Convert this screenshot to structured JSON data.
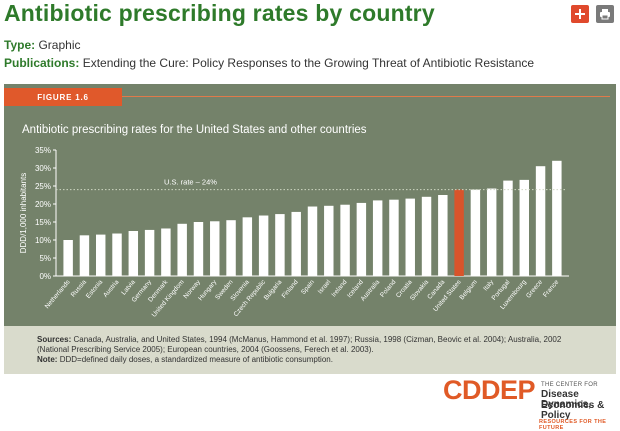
{
  "header": {
    "title": "Antibiotic prescribing rates by country",
    "add_icon": "plus-icon",
    "print_icon": "printer-icon"
  },
  "meta": {
    "type_label": "Type:",
    "type_value": "Graphic",
    "pub_label": "Publications:",
    "pub_value": "Extending the Cure: Policy Responses to the Growing Threat of Antibiotic Resistance"
  },
  "figure": {
    "tag": "FIGURE 1.6"
  },
  "chart_data": {
    "type": "bar",
    "title": "Antibiotic prescribing rates for the United States and other countries",
    "ylabel": "DDD/1,000 inhabitants",
    "xlabel": "",
    "ylim": [
      0,
      35
    ],
    "yticks": [
      "0%",
      "5%",
      "10%",
      "15%",
      "20%",
      "25%",
      "30%",
      "35%"
    ],
    "grid": false,
    "categories": [
      "Netherlands",
      "Russia",
      "Estonia",
      "Austria",
      "Latvia",
      "Germany",
      "Denmark",
      "United Kingdom",
      "Norway",
      "Hungary",
      "Sweden",
      "Slovenia",
      "Czech Republic",
      "Bulgaria",
      "Finland",
      "Spain",
      "Israel",
      "Ireland",
      "Iceland",
      "Australia",
      "Poland",
      "Croatia",
      "Slovakia",
      "Canada",
      "United States",
      "Belgium",
      "Italy",
      "Portugal",
      "Luxembourg",
      "Greece",
      "France"
    ],
    "values": [
      10,
      11.3,
      11.5,
      11.8,
      12.5,
      12.8,
      13.2,
      14.5,
      15,
      15.2,
      15.5,
      16.3,
      16.8,
      17.2,
      17.8,
      19.3,
      19.5,
      19.8,
      20.3,
      21,
      21.2,
      21.5,
      22,
      22.5,
      24,
      24,
      24.3,
      26.5,
      26.7,
      30.5,
      32
    ],
    "highlight": "United States",
    "reference_line": {
      "value": 24,
      "label": "U.S. rate – 24%"
    },
    "colors": {
      "bar": "#ffffff",
      "highlight": "#d9542b",
      "background": "#74826a",
      "reference": "#d0d8c4"
    }
  },
  "notes": {
    "sources_label": "Sources:",
    "sources_line1": "Canada, Australia, and United States, 1994 (McManus, Hammond et al. 1997); Russia, 1998 (Cizman, Beovic et al. 2004); Australia, 2002",
    "sources_line2": "(National Prescribing Service 2005); European countries, 2004 (Goossens, Ferech et al. 2003).",
    "note_label": "Note:",
    "note_text": "DDD=defined daily doses, a standardized measure of antibiotic consumption."
  },
  "logo": {
    "word": "CDDEP",
    "small": "THE CENTER FOR",
    "line1": "Disease Dynamics,",
    "line2": "Economics & Policy",
    "tagline": "RESOURCES FOR THE FUTURE"
  },
  "brand_colors": {
    "green": "#2e7a2a",
    "orange": "#e05a26"
  }
}
